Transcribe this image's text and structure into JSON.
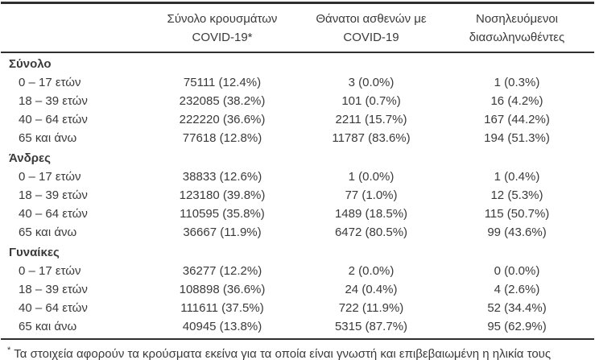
{
  "table": {
    "headers": [
      {
        "line1": "Σύνολο κρουσμάτων",
        "line2": "COVID-19*"
      },
      {
        "line1": "Θάνατοι ασθενών με",
        "line2": "COVID-19"
      },
      {
        "line1": "Νοσηλευόμενοι",
        "line2": "διασωληνωθέντες"
      }
    ],
    "sections": [
      {
        "label": "Σύνολο",
        "rows": [
          {
            "label": "0 – 17 ετών",
            "cases": "75111 (12.4%)",
            "deaths": "3 (0.0%)",
            "intubated": "1 (0.3%)"
          },
          {
            "label": "18 – 39 ετών",
            "cases": "232085 (38.2%)",
            "deaths": "101 (0.7%)",
            "intubated": "16 (4.2%)"
          },
          {
            "label": "40 – 64 ετών",
            "cases": "222220 (36.6%)",
            "deaths": "2211 (15.7%)",
            "intubated": "167 (44.2%)"
          },
          {
            "label": "65 και άνω",
            "cases": "77618 (12.8%)",
            "deaths": "11787 (83.6%)",
            "intubated": "194 (51.3%)"
          }
        ]
      },
      {
        "label": "Άνδρες",
        "rows": [
          {
            "label": "0 – 17 ετών",
            "cases": "38833 (12.6%)",
            "deaths": "1 (0.0%)",
            "intubated": "1 (0.4%)"
          },
          {
            "label": "18 – 39 ετών",
            "cases": "123180 (39.8%)",
            "deaths": "77 (1.0%)",
            "intubated": "12 (5.3%)"
          },
          {
            "label": "40 – 64 ετών",
            "cases": "110595 (35.8%)",
            "deaths": "1489 (18.5%)",
            "intubated": "115 (50.7%)"
          },
          {
            "label": "65 και άνω",
            "cases": "36667 (11.9%)",
            "deaths": "6472 (80.5%)",
            "intubated": "99 (43.6%)"
          }
        ]
      },
      {
        "label": "Γυναίκες",
        "rows": [
          {
            "label": "0 – 17 ετών",
            "cases": "36277 (12.2%)",
            "deaths": "2 (0.0%)",
            "intubated": "0 (0.0%)"
          },
          {
            "label": "18 – 39 ετών",
            "cases": "108898 (36.6%)",
            "deaths": "24 (0.4%)",
            "intubated": "4 (2.6%)"
          },
          {
            "label": "40 – 64 ετών",
            "cases": "111611 (37.5%)",
            "deaths": "722 (11.9%)",
            "intubated": "52 (34.4%)"
          },
          {
            "label": "65 και άνω",
            "cases": "40945 (13.8%)",
            "deaths": "5315 (87.7%)",
            "intubated": "95 (62.9%)"
          }
        ]
      }
    ],
    "footnote": {
      "marker": "*",
      "text": "Τα στοιχεία αφορούν τα κρούσματα εκείνα για τα οποία είναι γνωστή και επιβεβαιωμένη η ηλικία τους"
    }
  }
}
